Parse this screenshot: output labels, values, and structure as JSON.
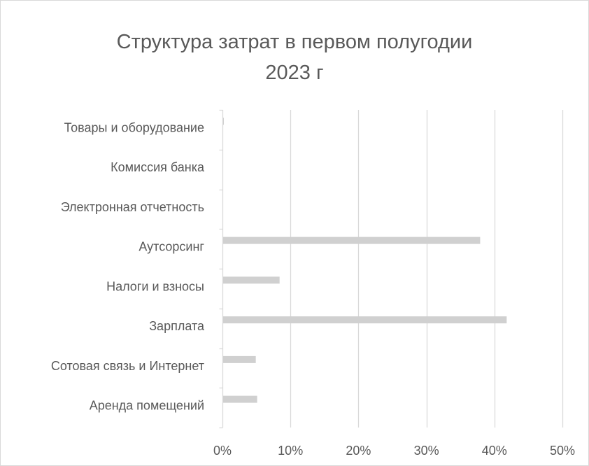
{
  "chart_data": {
    "type": "bar",
    "orientation": "horizontal",
    "title_lines": [
      "Структура затрат в первом полугодии",
      "2023 г"
    ],
    "xlabel": "",
    "ylabel": "",
    "categories": [
      "Товары и оборудование",
      "Комиссия банка",
      "Электронная отчетность",
      "Аутсорсинг",
      "Налоги и взносы",
      "Зарплата",
      "Сотовая связь и Интернет",
      "Аренда помещений"
    ],
    "values": [
      0.1,
      0.0,
      0.0,
      37.8,
      8.3,
      41.7,
      4.8,
      5.0
    ],
    "x_ticks": [
      "0%",
      "10%",
      "20%",
      "30%",
      "40%",
      "50%"
    ],
    "xlim": [
      0,
      50
    ],
    "grid": "vertical",
    "legend": "none",
    "bar_color": "#d0d0d0",
    "grid_color": "#d9d9d9",
    "text_color": "#595959"
  }
}
